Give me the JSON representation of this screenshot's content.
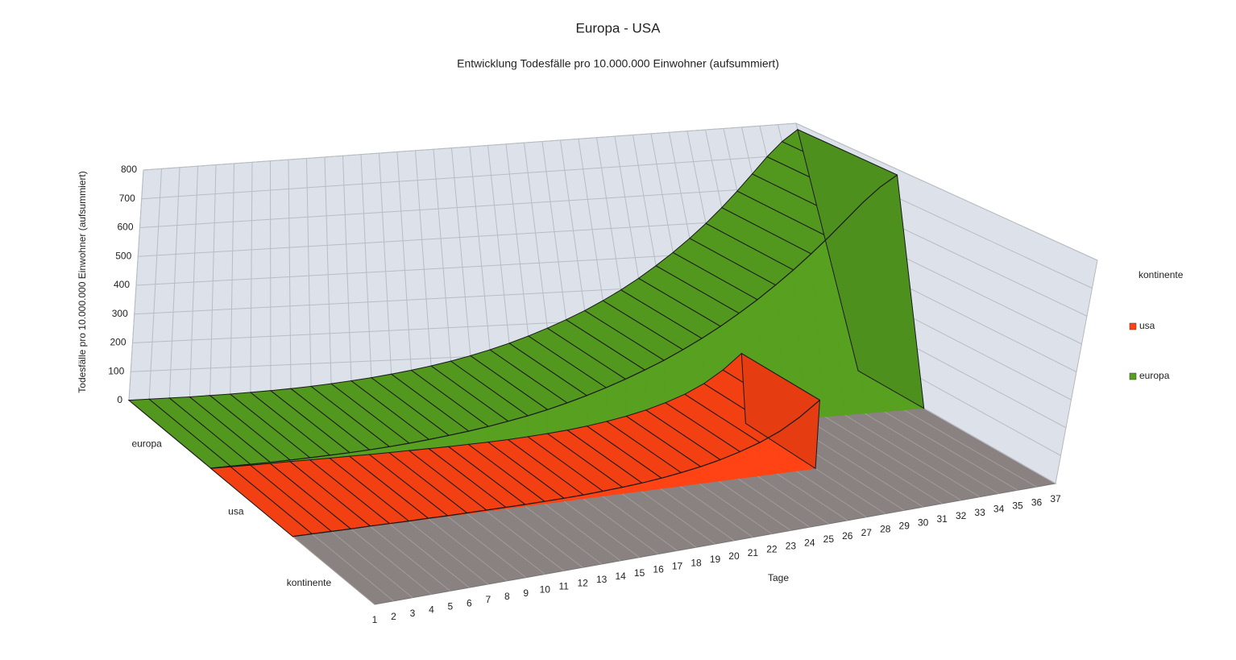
{
  "chart_data": {
    "type": "area3d",
    "title": "Europa - USA",
    "subtitle": "Entwicklung Todesfälle pro 10.000.000 Einwohner (aufsummiert)",
    "x_axis_label": "Tage",
    "y_axis_label": "Todesfälle pro 10.000.000 Einwohner (aufsummiert)",
    "z_axis_label": "kontinente",
    "legend_title": "kontinente",
    "legend": "right",
    "categories": [
      "1",
      "2",
      "3",
      "4",
      "5",
      "6",
      "7",
      "8",
      "9",
      "10",
      "11",
      "12",
      "13",
      "14",
      "15",
      "16",
      "17",
      "18",
      "19",
      "20",
      "21",
      "22",
      "23",
      "24",
      "25",
      "26",
      "27",
      "28",
      "29",
      "30",
      "31",
      "32",
      "33",
      "34",
      "35",
      "36",
      "37"
    ],
    "series": [
      {
        "name": "usa",
        "color": "#ff4314",
        "values": [
          0,
          0,
          0,
          0,
          1,
          1,
          1,
          2,
          2,
          3,
          4,
          5,
          6,
          8,
          10,
          13,
          17,
          22,
          28,
          36,
          46,
          58,
          73,
          92,
          115,
          145,
          185,
          235,
          null,
          null,
          null,
          null,
          null,
          null,
          null,
          null,
          null
        ]
      },
      {
        "name": "europa",
        "color": "#57a020",
        "values": [
          1,
          2,
          3,
          4,
          6,
          8,
          11,
          14,
          18,
          23,
          29,
          36,
          44,
          53,
          63,
          75,
          88,
          103,
          120,
          139,
          160,
          183,
          208,
          235,
          265,
          297,
          332,
          370,
          410,
          453,
          498,
          546,
          596,
          648,
          700,
          745,
          780
        ]
      }
    ],
    "ylim": [
      0,
      800
    ],
    "yticks": [
      0,
      100,
      200,
      300,
      400,
      500,
      600,
      700,
      800
    ],
    "grid": true
  }
}
